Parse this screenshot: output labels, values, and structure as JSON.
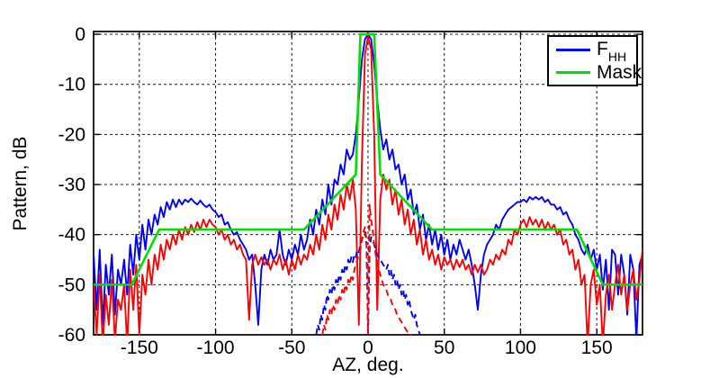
{
  "figure": {
    "background": "#ffffff",
    "xlabel": "AZ, deg.",
    "ylabel": "Pattern, dB"
  },
  "legend": {
    "entries": [
      {
        "label": "F",
        "subscript": "HH",
        "color": "#0000ff"
      },
      {
        "label": "Mask",
        "subscript": "",
        "color": "#00df00"
      }
    ]
  },
  "chart_data": {
    "type": "line",
    "title": "",
    "xlabel": "AZ, deg.",
    "ylabel": "Pattern, dB",
    "xlim": [
      -180,
      180
    ],
    "ylim": [
      -60,
      0
    ],
    "x_ticks": [
      -150,
      -100,
      -50,
      0,
      50,
      100,
      150
    ],
    "y_ticks": [
      0,
      -10,
      -20,
      -30,
      -40,
      -50,
      -60
    ],
    "grid": true,
    "grid_style": "dashed",
    "legend_position": "top-right",
    "series": [
      {
        "id": "fhh",
        "name": "F_HH",
        "color": "#0000ff",
        "style": "solid",
        "in_legend": true,
        "x_start": -180,
        "x_step": 2,
        "values": [
          -44,
          -55,
          -43,
          -58,
          -46,
          -52,
          -44,
          -56,
          -47,
          -50,
          -45,
          -52,
          -42,
          -48,
          -40,
          -45,
          -38,
          -43,
          -37,
          -40,
          -36,
          -38,
          -34.5,
          -36.5,
          -33.5,
          -35,
          -33,
          -34.5,
          -33,
          -34,
          -33,
          -33.5,
          -32.8,
          -33.5,
          -34,
          -33.2,
          -34,
          -34.5,
          -34,
          -35,
          -35.5,
          -36.5,
          -36,
          -38,
          -37.5,
          -39,
          -40,
          -39.5,
          -41,
          -42,
          -43,
          -45,
          -44,
          -50,
          -58,
          -47,
          -44,
          -46,
          -43,
          -45,
          -44,
          -39,
          -44,
          -46,
          -43,
          -45,
          -42,
          -44,
          -40,
          -43,
          -41,
          -37,
          -40,
          -35,
          -38,
          -33,
          -36,
          -30,
          -34,
          -29,
          -30,
          -26,
          -28,
          -23,
          -25,
          -24,
          -20,
          -13,
          -5,
          -1,
          0,
          -1,
          -6,
          -13,
          -19,
          -23,
          -21,
          -25,
          -23,
          -27,
          -26,
          -30,
          -28,
          -33,
          -31,
          -36,
          -34,
          -39,
          -36,
          -41,
          -38,
          -42,
          -39,
          -43,
          -40,
          -44,
          -41,
          -45,
          -42,
          -44,
          -41,
          -43,
          -45,
          -43,
          -46,
          -50,
          -55,
          -48,
          -44,
          -42,
          -41,
          -40,
          -38,
          -39,
          -37,
          -36,
          -35,
          -34.5,
          -34,
          -33.5,
          -33.5,
          -33,
          -33.5,
          -32.5,
          -33,
          -32.5,
          -33,
          -32.5,
          -33.5,
          -33,
          -34,
          -34,
          -35,
          -34.5,
          -36,
          -35.5,
          -37,
          -38,
          -40,
          -41,
          -43,
          -44,
          -42,
          -45,
          -43,
          -47,
          -44,
          -51,
          -45,
          -55,
          -43,
          -44,
          -52,
          -44,
          -48,
          -56,
          -44,
          -47,
          -61,
          -46,
          -44
        ]
      },
      {
        "id": "copol-red",
        "name": "red co-pol (unlabeled)",
        "color": "#ff0000",
        "style": "solid",
        "in_legend": false,
        "x_start": -180,
        "x_step": 2,
        "values": [
          -50,
          -60,
          -48,
          -62,
          -52,
          -58,
          -49,
          -61,
          -53,
          -55,
          -50,
          -62,
          -47,
          -55,
          -46,
          -60,
          -48,
          -52,
          -45,
          -50,
          -44,
          -47,
          -42,
          -45,
          -41,
          -43,
          -40,
          -42,
          -39,
          -41,
          -38.5,
          -40,
          -38,
          -39.5,
          -37.5,
          -39,
          -37,
          -38.5,
          -37,
          -38,
          -38.5,
          -40,
          -39,
          -41,
          -40,
          -42,
          -41,
          -43,
          -42,
          -44,
          -45,
          -57,
          -46,
          -44,
          -46,
          -44.5,
          -46,
          -45,
          -47,
          -45,
          -46,
          -44,
          -47,
          -45,
          -48,
          -45,
          -47,
          -44,
          -46,
          -44,
          -45,
          -42,
          -44,
          -40,
          -43,
          -38,
          -41,
          -36,
          -39,
          -34,
          -37,
          -32,
          -35,
          -30,
          -33,
          -29,
          -35,
          -58,
          -25,
          -4,
          -0.5,
          -3,
          -20,
          -55,
          -33,
          -28,
          -31,
          -29,
          -34,
          -31,
          -36,
          -33,
          -38,
          -35,
          -40,
          -37,
          -42,
          -39,
          -44,
          -41,
          -45,
          -43,
          -46,
          -44,
          -47,
          -44.5,
          -46,
          -45,
          -47,
          -45,
          -46.5,
          -45,
          -47,
          -46,
          -48,
          -46,
          -47.5,
          -46,
          -48,
          -47,
          -45,
          -46,
          -44,
          -45,
          -43,
          -44,
          -41,
          -42,
          -39,
          -40,
          -38,
          -37,
          -38.5,
          -36.5,
          -38,
          -37,
          -38.5,
          -37,
          -39,
          -37.5,
          -39,
          -38,
          -40,
          -39,
          -42,
          -41,
          -44,
          -43,
          -47,
          -45,
          -50,
          -48,
          -62,
          -50,
          -47,
          -54,
          -50,
          -62,
          -52,
          -48,
          -55,
          -50,
          -46,
          -52,
          -48,
          -55,
          -50,
          -47,
          -53,
          -49,
          -43
        ]
      },
      {
        "id": "mask",
        "name": "Mask",
        "color": "#00df00",
        "style": "solid",
        "in_legend": true,
        "points": [
          [
            -180,
            -50
          ],
          [
            -155,
            -50
          ],
          [
            -137,
            -39
          ],
          [
            -42,
            -39
          ],
          [
            -8,
            -28
          ],
          [
            -5,
            0
          ],
          [
            4,
            0
          ],
          [
            8,
            -28
          ],
          [
            42,
            -39
          ],
          [
            137,
            -39
          ],
          [
            154,
            -50
          ],
          [
            180,
            -50
          ]
        ]
      },
      {
        "id": "xpol-blue-dashed",
        "name": "blue cross-pol (dashed, unlabeled)",
        "color": "#0000ff",
        "style": "dashed",
        "in_legend": false,
        "x_start": -34,
        "x_step": 1,
        "values": [
          -60,
          -58,
          -59,
          -56,
          -57,
          -54,
          -55,
          -52,
          -53,
          -51,
          -52,
          -50,
          -51,
          -49,
          -50,
          -48,
          -49,
          -47,
          -48,
          -46,
          -47,
          -45,
          -46,
          -44.5,
          -45.5,
          -44,
          -44.5,
          -43,
          -43.5,
          -42,
          -41,
          -40,
          -39.5,
          -42,
          -60,
          -43,
          -40.5,
          -41,
          -42,
          -43,
          -44,
          -44.5,
          -45,
          -45.5,
          -46,
          -46.5,
          -47,
          -46,
          -48,
          -47,
          -49,
          -48,
          -50,
          -49,
          -51,
          -50,
          -52,
          -51,
          -53,
          -52,
          -54,
          -53,
          -55,
          -56,
          -57,
          -56,
          -58,
          -59,
          -60
        ]
      },
      {
        "id": "xpol-red-dashed",
        "name": "red cross-pol (dashed, unlabeled)",
        "color": "#ff0000",
        "style": "dashed",
        "in_legend": false,
        "x_start": -30,
        "x_step": 1,
        "values": [
          -60,
          -58,
          -59,
          -56,
          -57,
          -55,
          -56,
          -54,
          -55,
          -53,
          -54,
          -52,
          -53,
          -51,
          -52,
          -50,
          -51,
          -49,
          -50,
          -48,
          -49,
          -47,
          -46,
          -45,
          -44,
          -43,
          -41,
          -39.5,
          -38.5,
          -41,
          -60,
          -34,
          -37,
          -39,
          -42,
          -44,
          -46,
          -47,
          -48,
          -49,
          -50,
          -50.5,
          -51,
          -52,
          -52.5,
          -53,
          -54,
          -54.5,
          -55,
          -56,
          -56.5,
          -57,
          -57.5,
          -58,
          -58.5,
          -59,
          -59.5,
          -60,
          -60,
          -61,
          -61
        ]
      }
    ]
  }
}
